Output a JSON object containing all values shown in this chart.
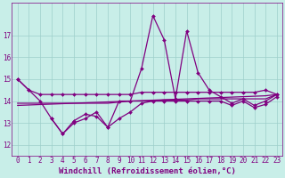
{
  "xlabel": "Windchill (Refroidissement éolien,°C)",
  "bg_color": "#c8eee8",
  "line_color": "#800080",
  "x": [
    0,
    1,
    2,
    3,
    4,
    5,
    6,
    7,
    8,
    9,
    10,
    11,
    12,
    13,
    14,
    15,
    16,
    17,
    18,
    19,
    20,
    21,
    22,
    23
  ],
  "series_spike": [
    15.0,
    14.5,
    14.0,
    13.2,
    12.5,
    13.0,
    13.2,
    13.5,
    12.8,
    14.0,
    14.0,
    15.5,
    17.9,
    16.8,
    14.1,
    17.2,
    15.3,
    14.5,
    14.2,
    13.9,
    14.1,
    13.8,
    14.0,
    14.3
  ],
  "series_upper": [
    15.0,
    14.5,
    14.3,
    14.3,
    14.3,
    14.3,
    14.3,
    14.3,
    14.3,
    14.3,
    14.3,
    14.4,
    14.4,
    14.4,
    14.4,
    14.4,
    14.4,
    14.4,
    14.4,
    14.4,
    14.4,
    14.4,
    14.5,
    14.3
  ],
  "series_mid": [
    13.9,
    13.9,
    13.9,
    13.9,
    13.9,
    13.9,
    13.9,
    13.9,
    13.9,
    13.95,
    14.0,
    14.0,
    14.0,
    14.05,
    14.05,
    14.05,
    14.1,
    14.1,
    14.1,
    14.1,
    14.1,
    14.1,
    14.1,
    14.3
  ],
  "series_lower": [
    13.8,
    13.82,
    13.84,
    13.86,
    13.88,
    13.9,
    13.92,
    13.94,
    13.96,
    13.98,
    14.0,
    14.02,
    14.04,
    14.06,
    14.08,
    14.1,
    14.12,
    14.14,
    14.16,
    14.18,
    14.2,
    14.22,
    14.24,
    14.3
  ],
  "series_dip": [
    null,
    null,
    null,
    13.2,
    12.5,
    13.1,
    13.4,
    13.3,
    12.8,
    13.2,
    13.5,
    13.9,
    14.0,
    14.0,
    14.0,
    14.0,
    14.0,
    14.0,
    14.0,
    13.8,
    14.0,
    13.7,
    13.85,
    14.2
  ],
  "ylim": [
    11.5,
    18.5
  ],
  "yticks": [
    12,
    13,
    14,
    15,
    16,
    17
  ],
  "xticks": [
    0,
    1,
    2,
    3,
    4,
    5,
    6,
    7,
    8,
    9,
    10,
    11,
    12,
    13,
    14,
    15,
    16,
    17,
    18,
    19,
    20,
    21,
    22,
    23
  ],
  "grid_color": "#9ecfca",
  "tick_fontsize": 5.5,
  "label_fontsize": 6.5
}
